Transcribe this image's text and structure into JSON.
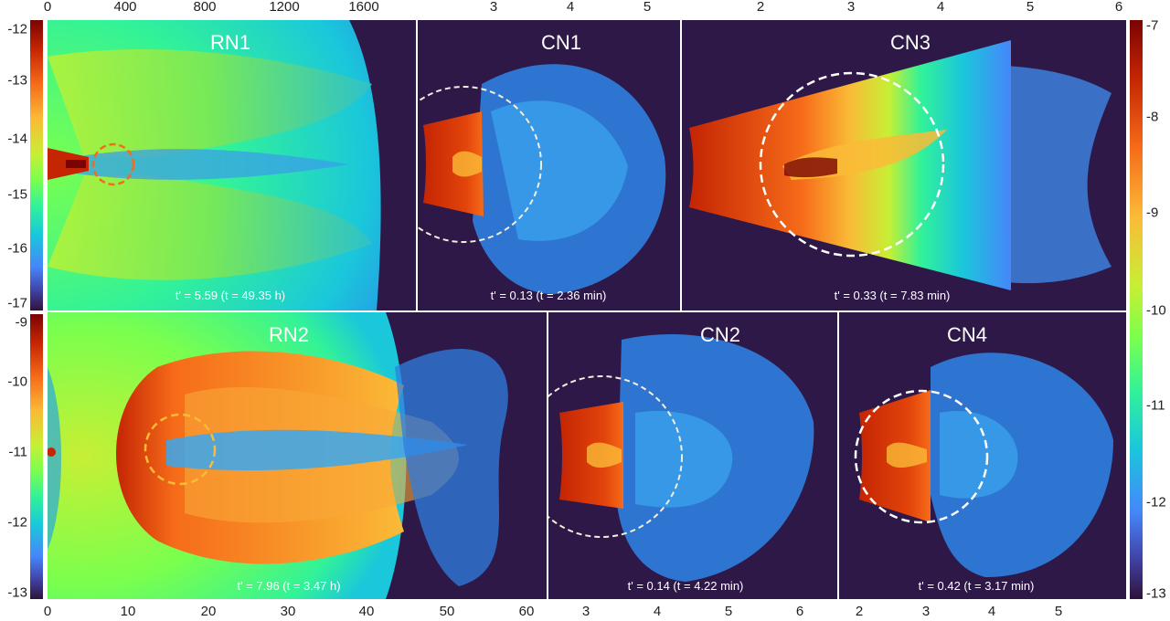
{
  "top_axis": {
    "rn1": [
      "0",
      "400",
      "800",
      "1200",
      "1600"
    ],
    "cn1": [
      "3",
      "4",
      "5"
    ],
    "cn3": [
      "2",
      "3",
      "4",
      "5",
      "6"
    ]
  },
  "bottom_axis": {
    "rn2": [
      "0",
      "10",
      "20",
      "30",
      "40",
      "50",
      "60"
    ],
    "cn2": [
      "3",
      "4",
      "5",
      "6"
    ],
    "cn4": [
      "2",
      "3",
      "4",
      "5"
    ]
  },
  "left_colorbar_top": {
    "ticks": [
      "-12",
      "-13",
      "-14",
      "-15",
      "-16",
      "-17"
    ]
  },
  "left_colorbar_bottom": {
    "ticks": [
      "-9",
      "-10",
      "-11",
      "-12",
      "-13"
    ]
  },
  "right_colorbar": {
    "ticks": [
      "-7",
      "-8",
      "-9",
      "-10",
      "-11",
      "-12",
      "-13"
    ]
  },
  "panels": {
    "rn1": {
      "label": "RN1",
      "time": "t' = 5.59  (t = 49.35 h)"
    },
    "cn1": {
      "label": "CN1",
      "time": "t' = 0.13  (t = 2.36 min)"
    },
    "cn3": {
      "label": "CN3",
      "time": "t' = 0.33  (t = 7.83 min)"
    },
    "rn2": {
      "label": "RN2",
      "time": "t' = 7.96  (t = 3.47 h)"
    },
    "cn2": {
      "label": "CN2",
      "time": "t' = 0.14  (t = 4.22 min)"
    },
    "cn4": {
      "label": "CN4",
      "time": "t' = 0.42  (t = 3.17 min)"
    }
  },
  "colors": {
    "background": "#2e1848",
    "colormap": [
      "#7a0403",
      "#c42503",
      "#f66b19",
      "#fabb37",
      "#c7ef34",
      "#7aff4e",
      "#32f298",
      "#1ac7db",
      "#4686fb",
      "#4043a6",
      "#30123b"
    ]
  }
}
